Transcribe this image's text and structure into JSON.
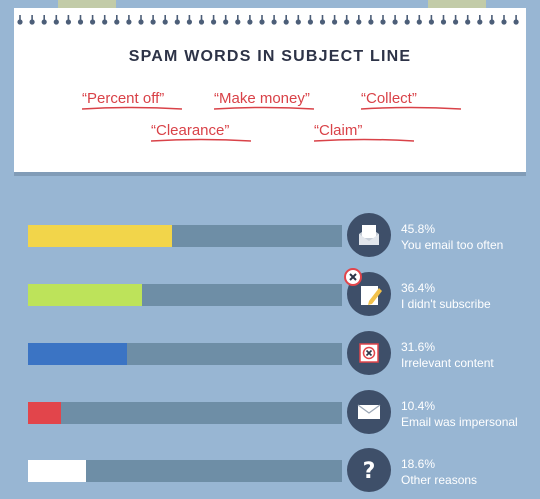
{
  "card": {
    "title": "SPAM WORDS IN SUBJECT LINE",
    "words": [
      "“Percent off”",
      "“Make money”",
      "“Collect”",
      "“Clearance”",
      "“Claim”"
    ]
  },
  "chart_data": {
    "type": "bar",
    "orientation": "horizontal",
    "xlim": [
      0,
      100
    ],
    "categories": [
      "You email too often",
      "I didn't subscribe",
      "Irrelevant content",
      "Email was impersonal",
      "Other reasons"
    ],
    "values": [
      45.8,
      36.4,
      31.6,
      10.4,
      18.6
    ],
    "value_labels": [
      "45.8%",
      "36.4%",
      "31.6%",
      "10.4%",
      "18.6%"
    ],
    "colors": [
      "#f2d54a",
      "#bde35a",
      "#3b74c4",
      "#e2454b",
      "#ffffff"
    ],
    "icons": [
      "envelope-open-icon",
      "edit-cancel-icon",
      "x-box-icon",
      "envelope-icon",
      "question-mark-icon"
    ]
  },
  "colors": {
    "background": "#98b6d3",
    "track": "#6e8ea6",
    "icon_bg": "#3e4f69",
    "accent_red": "#d94248"
  }
}
